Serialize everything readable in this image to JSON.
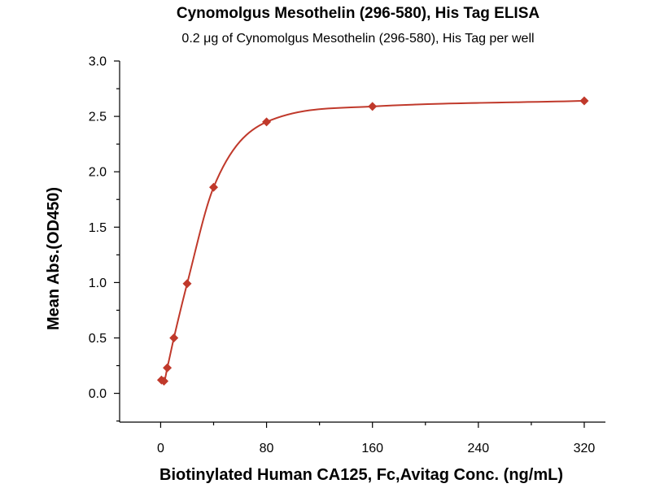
{
  "chart_data": {
    "type": "scatter",
    "title": "Cynomolgus Mesothelin (296-580), His Tag ELISA",
    "subtitle": "0.2 μg of Cynomolgus Mesothelin (296-580), His Tag per well",
    "xlabel": "Biotinylated Human CA125, Fc,Avitag Conc. (ng/mL)",
    "ylabel": "Mean Abs.(OD450)",
    "xlim": [
      -31,
      336
    ],
    "ylim": [
      -0.26,
      3.0
    ],
    "x_ticks": [
      0,
      80,
      160,
      240,
      320
    ],
    "x_tick_labels": [
      "0",
      "80",
      "160",
      "240",
      "320"
    ],
    "y_ticks": [
      0.0,
      0.5,
      1.0,
      1.5,
      2.0,
      2.5,
      3.0
    ],
    "y_tick_labels": [
      "0.0",
      "0.5",
      "1.0",
      "1.5",
      "2.0",
      "2.5",
      "3.0"
    ],
    "grid": false,
    "series": [
      {
        "marker": "diamond",
        "color": "#c0392b",
        "x": [
          0.625,
          2.5,
          5,
          10,
          20,
          40,
          80,
          160,
          320
        ],
        "y": [
          0.12,
          0.11,
          0.23,
          0.5,
          0.99,
          1.86,
          2.45,
          2.59,
          2.64
        ],
        "fit": "four-parameter-logistic"
      }
    ]
  }
}
